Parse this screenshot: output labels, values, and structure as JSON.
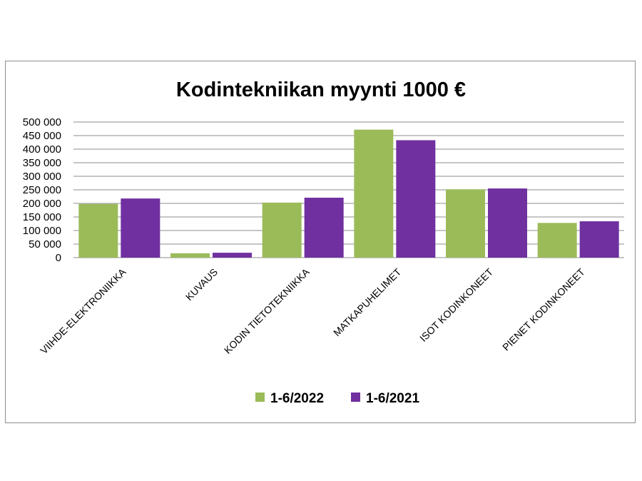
{
  "chart_data": {
    "type": "bar",
    "title": "Kodintekniikan myynti 1000 €",
    "xlabel": "",
    "ylabel": "",
    "ylim": [
      0,
      500000
    ],
    "ytick_step": 50000,
    "ytick_labels": [
      "0",
      "50 000",
      "100 000",
      "150 000",
      "200 000",
      "250 000",
      "300 000",
      "350 000",
      "400 000",
      "450 000",
      "500 000"
    ],
    "grid": true,
    "legend_position": "bottom",
    "categories": [
      "VIIHDE-ELEKTRONIIKKA",
      "KUVAUS",
      "KODIN TIETOTEKNIIKKA",
      "MATKAPUHELIMET",
      "ISOT KODINKONEET",
      "PIENET KODINKONEET"
    ],
    "series": [
      {
        "name": "1-6/2022",
        "color": "#9bbb59",
        "values": [
          198000,
          16000,
          203000,
          472000,
          252000,
          128000
        ]
      },
      {
        "name": "1-6/2021",
        "color": "#7030a0",
        "values": [
          218000,
          18000,
          221000,
          433000,
          255000,
          134000
        ]
      }
    ]
  }
}
